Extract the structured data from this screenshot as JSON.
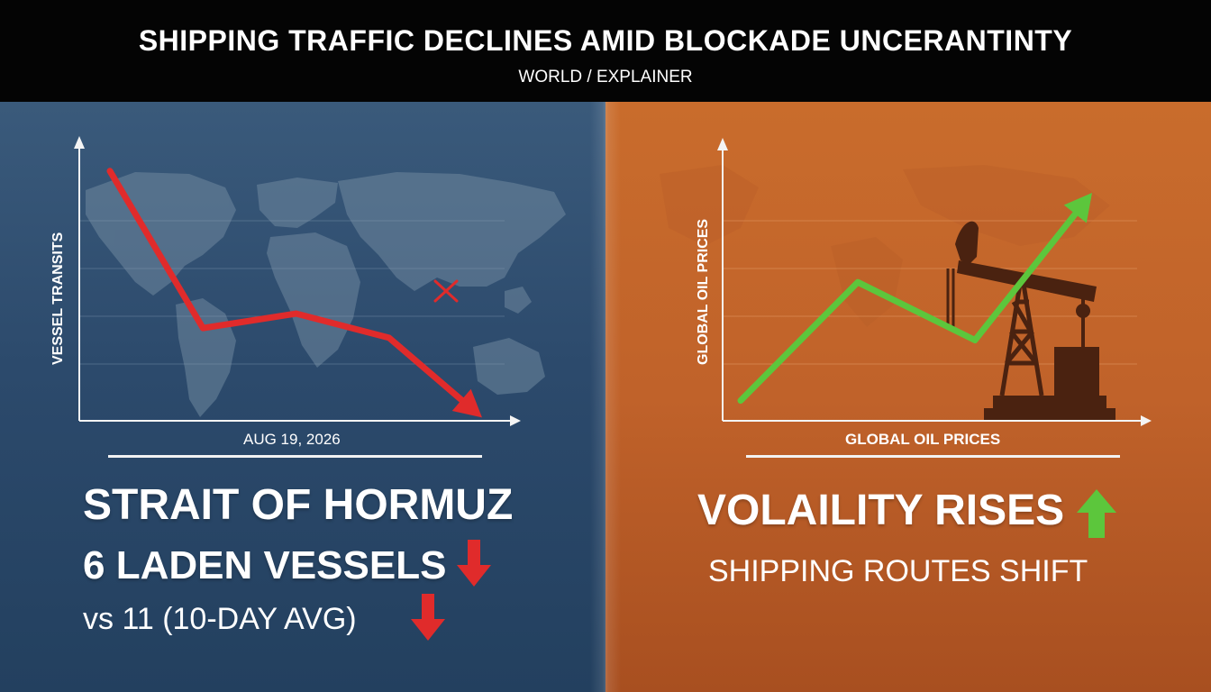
{
  "header": {
    "headline": "SHIPPING TRAFFIC DECLINES AMID BLOCKADE UNCERANTINTY",
    "kicker": "WORLD / EXPLAINER"
  },
  "left_panel": {
    "y_axis_label": "VESSEL TRANSITS",
    "x_axis_label": "AUG 19, 2026",
    "title": "STRAIT OF HORMUZ",
    "stat": "6 LADEN VESSELS",
    "comparison": "vs 11 (10-DAY AVG)",
    "trend_color": "#e02b2b",
    "marker_icon": "x-mark-icon",
    "background_icon": "world-map-icon",
    "stat_icon": "arrow-down-icon",
    "comparison_icon": "arrow-down-icon"
  },
  "right_panel": {
    "y_axis_label": "GLOBAL OIL PRICES",
    "x_axis_label": "GLOBAL OIL PRICES",
    "title": "VOLAILITY RISES",
    "subtitle": "SHIPPING ROUTES SHIFT",
    "trend_color": "#5cc63c",
    "background_icon": "oil-pump-jack-icon",
    "title_icon": "arrow-up-icon"
  },
  "chart_data": [
    {
      "type": "line",
      "ylabel": "VESSEL TRANSITS",
      "xlabel": "AUG 19, 2026",
      "series": [
        {
          "values": [
            10,
            3.5,
            4.1,
            3.1,
            -0.2
          ]
        }
      ],
      "ylim": [
        0,
        11
      ],
      "grid": true
    },
    {
      "type": "line",
      "ylabel": "GLOBAL OIL PRICES",
      "xlabel": "GLOBAL OIL PRICES",
      "series": [
        {
          "values": [
            0.5,
            5.4,
            3.0,
            9.1
          ]
        }
      ],
      "ylim": [
        0,
        11
      ],
      "grid": true
    }
  ]
}
